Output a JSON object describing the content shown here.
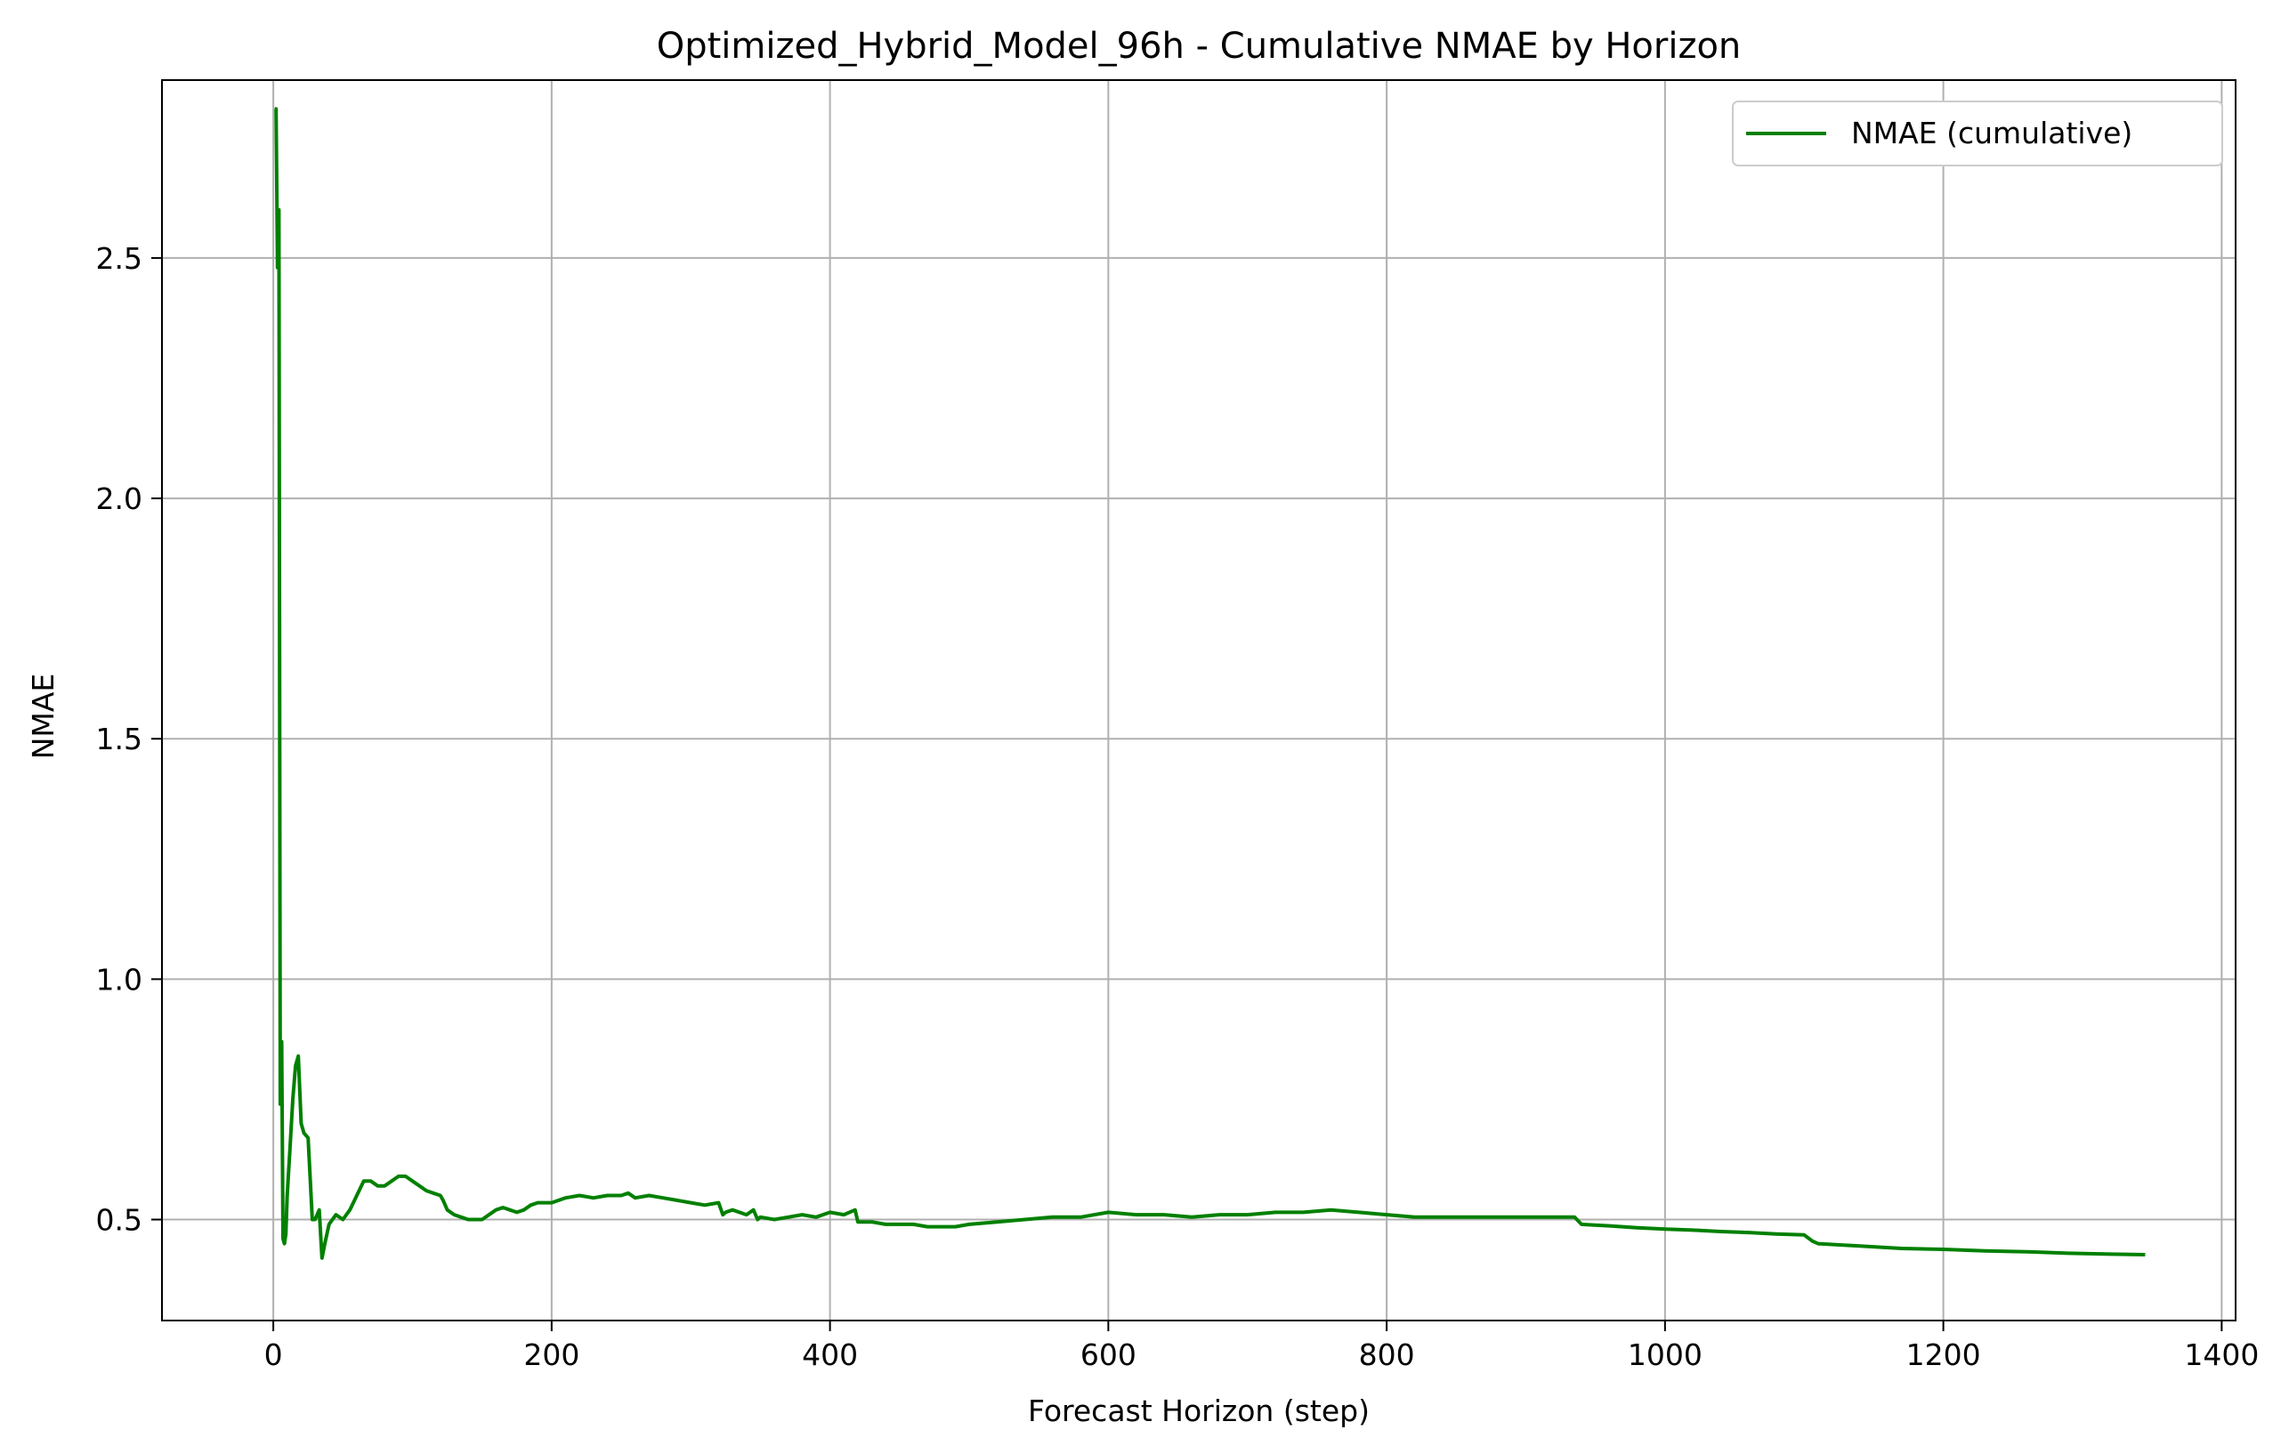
{
  "chart_data": {
    "type": "line",
    "title": "Optimized_Hybrid_Model_96h - Cumulative NMAE by Horizon",
    "xlabel": "Forecast Horizon (step)",
    "ylabel": "NMAE",
    "xlim": [
      -80,
      1410
    ],
    "ylim": [
      0.29,
      2.87
    ],
    "xticks": [
      0,
      200,
      400,
      600,
      800,
      1000,
      1200,
      1400
    ],
    "yticks": [
      0.5,
      1.0,
      1.5,
      2.0,
      2.5
    ],
    "xtick_labels": [
      "0",
      "200",
      "400",
      "600",
      "800",
      "1000",
      "1200",
      "1400"
    ],
    "ytick_labels": [
      "0.5",
      "1.0",
      "1.5",
      "2.0",
      "2.5"
    ],
    "grid": true,
    "legend_position": "upper right",
    "series": [
      {
        "name": "NMAE (cumulative)",
        "color": "#008000",
        "x": [
          1,
          2,
          3,
          4,
          5,
          6,
          7,
          8,
          9,
          10,
          12,
          14,
          16,
          18,
          20,
          22,
          25,
          28,
          30,
          33,
          35,
          37,
          40,
          45,
          50,
          55,
          60,
          65,
          70,
          75,
          80,
          85,
          90,
          95,
          100,
          105,
          110,
          115,
          120,
          122,
          125,
          130,
          135,
          140,
          150,
          160,
          165,
          170,
          175,
          180,
          185,
          190,
          200,
          210,
          220,
          230,
          240,
          250,
          255,
          260,
          270,
          280,
          290,
          300,
          310,
          320,
          323,
          325,
          330,
          340,
          345,
          348,
          350,
          360,
          370,
          380,
          390,
          400,
          410,
          418,
          420,
          430,
          440,
          450,
          460,
          470,
          480,
          490,
          500,
          520,
          540,
          560,
          580,
          600,
          620,
          640,
          660,
          680,
          700,
          720,
          740,
          760,
          780,
          800,
          820,
          840,
          860,
          880,
          900,
          920,
          935,
          940,
          960,
          980,
          1000,
          1020,
          1040,
          1060,
          1080,
          1100,
          1106,
          1110,
          1140,
          1170,
          1200,
          1230,
          1260,
          1290,
          1320,
          1345
        ],
        "y": [
          2.81,
          2.81,
          2.48,
          2.6,
          0.74,
          0.87,
          0.46,
          0.45,
          0.47,
          0.55,
          0.65,
          0.75,
          0.82,
          0.84,
          0.7,
          0.68,
          0.67,
          0.5,
          0.5,
          0.52,
          0.42,
          0.45,
          0.49,
          0.51,
          0.5,
          0.52,
          0.55,
          0.58,
          0.58,
          0.57,
          0.57,
          0.58,
          0.59,
          0.59,
          0.58,
          0.57,
          0.56,
          0.555,
          0.55,
          0.54,
          0.52,
          0.51,
          0.505,
          0.5,
          0.5,
          0.52,
          0.525,
          0.52,
          0.515,
          0.52,
          0.53,
          0.535,
          0.535,
          0.545,
          0.55,
          0.545,
          0.55,
          0.55,
          0.555,
          0.545,
          0.55,
          0.545,
          0.54,
          0.535,
          0.53,
          0.535,
          0.51,
          0.515,
          0.52,
          0.51,
          0.52,
          0.5,
          0.505,
          0.5,
          0.505,
          0.51,
          0.505,
          0.515,
          0.51,
          0.52,
          0.495,
          0.495,
          0.49,
          0.49,
          0.49,
          0.485,
          0.485,
          0.485,
          0.49,
          0.495,
          0.5,
          0.505,
          0.505,
          0.515,
          0.51,
          0.51,
          0.505,
          0.51,
          0.51,
          0.515,
          0.515,
          0.52,
          0.515,
          0.51,
          0.505,
          0.505,
          0.505,
          0.505,
          0.505,
          0.505,
          0.505,
          0.49,
          0.487,
          0.483,
          0.48,
          0.478,
          0.475,
          0.473,
          0.47,
          0.468,
          0.455,
          0.45,
          0.445,
          0.44,
          0.438,
          0.435,
          0.433,
          0.43,
          0.428,
          0.427
        ]
      }
    ]
  }
}
